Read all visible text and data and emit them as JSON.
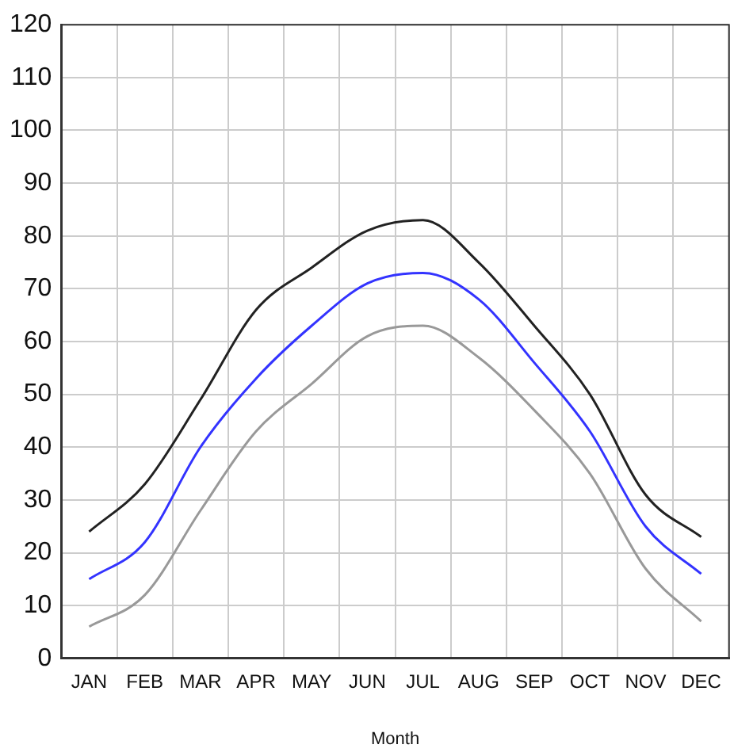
{
  "chart_data": {
    "type": "line",
    "xlabel": "Month",
    "categories": [
      "JAN",
      "FEB",
      "MAR",
      "APR",
      "MAY",
      "JUN",
      "JUL",
      "AUG",
      "SEP",
      "OCT",
      "NOV",
      "DEC"
    ],
    "series": [
      {
        "color": "#222222",
        "values": [
          24,
          33,
          49,
          66,
          74,
          81,
          83,
          75,
          63,
          50,
          31,
          23
        ]
      },
      {
        "color": "#3333ff",
        "values": [
          15,
          22,
          40,
          53,
          63,
          71,
          73,
          68,
          56,
          43,
          25,
          16
        ]
      },
      {
        "color": "#999999",
        "values": [
          6,
          12,
          28,
          43,
          52,
          61,
          63,
          57,
          47,
          35,
          17,
          7
        ]
      }
    ],
    "ylim": [
      0,
      120
    ],
    "yticks": [
      0,
      10,
      20,
      30,
      40,
      50,
      60,
      70,
      80,
      90,
      100,
      110,
      120
    ],
    "grid": true,
    "legend": false,
    "marker": "none",
    "line_style": "solid"
  }
}
